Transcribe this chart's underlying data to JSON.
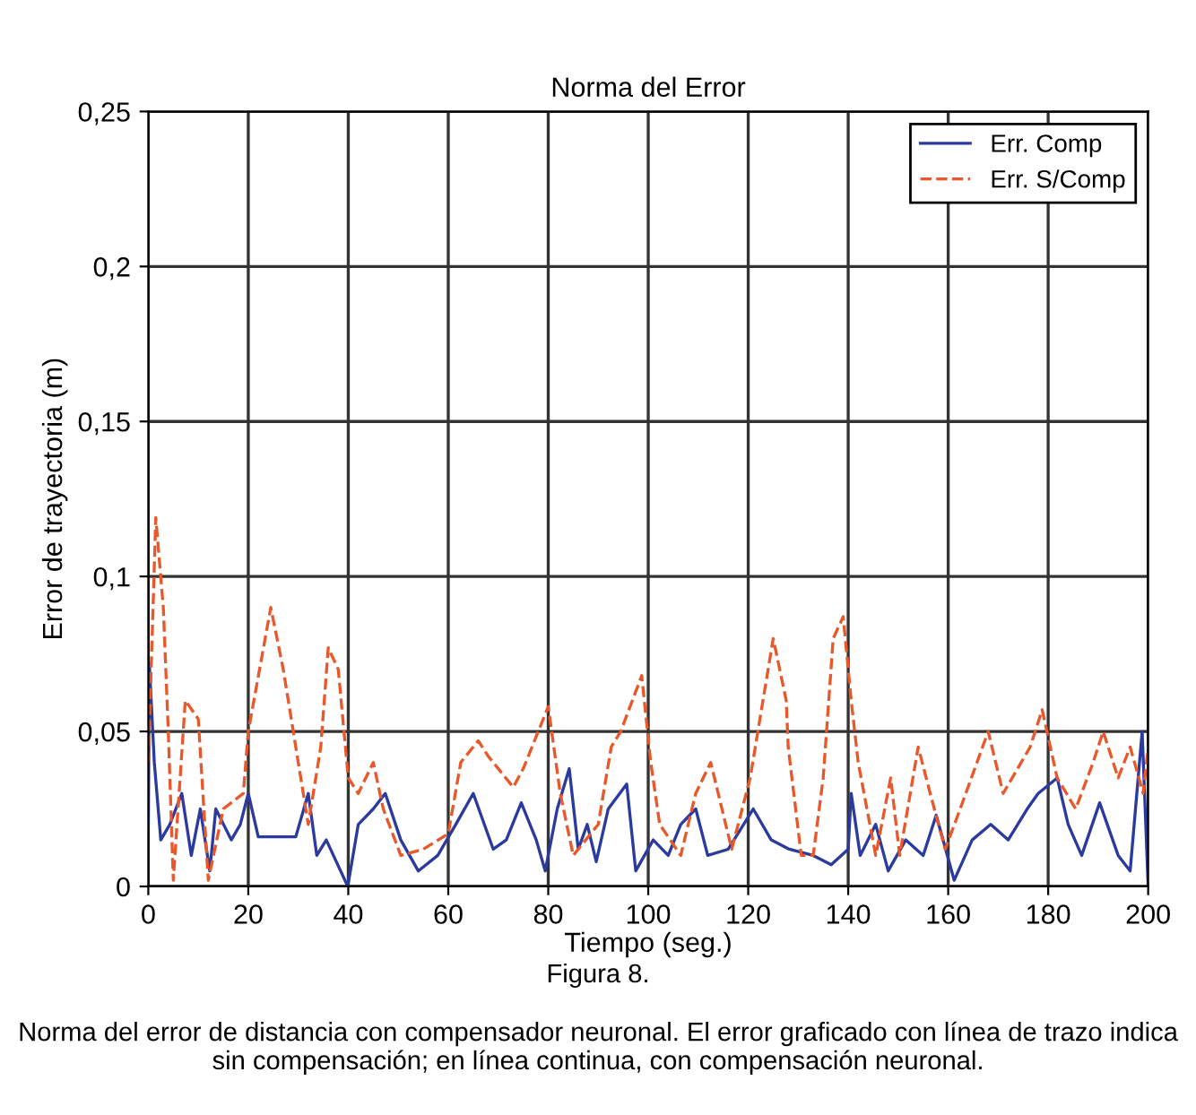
{
  "chart_data": {
    "type": "line",
    "title": "Norma del Error",
    "xlabel": "Tiempo (seg.)",
    "ylabel": "Error de trayectoria (m)",
    "annotations": [
      "Figura 8.",
      "Norma del error de distancia con compensador neuronal. El error graficado con línea de trazo indica sin compensación; en línea continua, con compensación neuronal."
    ],
    "xlim": [
      0,
      200
    ],
    "ylim": [
      0,
      0.25
    ],
    "xticks": [
      0,
      20,
      40,
      60,
      80,
      100,
      120,
      140,
      160,
      180,
      200
    ],
    "yticks": [
      0,
      {
        "value": 0.05,
        "label": "0,05"
      },
      {
        "value": 0.1,
        "label": "0,1"
      },
      {
        "value": 0.15,
        "label": "0,15"
      },
      {
        "value": 0.2,
        "label": "0,2"
      },
      {
        "value": 0.25,
        "label": "0,25"
      }
    ],
    "grid": true,
    "legend": "top right",
    "marker": "none",
    "series": [
      {
        "name": "Err. Comp",
        "color": "#2b3a9e",
        "line_style": "solid",
        "x": [
          0,
          0.2,
          1.2,
          2.5,
          4.3,
          6.7,
          8.6,
          10.4,
          12.3,
          13.5,
          16.6,
          18.4,
          20,
          22,
          29.5,
          32,
          33.7,
          35.6,
          39.9,
          42,
          45,
          47.4,
          50.5,
          54,
          57.9,
          61.5,
          65,
          69,
          71.6,
          74.6,
          77.6,
          79.4,
          81.8,
          84.2,
          86,
          87.8,
          89.6,
          92,
          95.7,
          97.5,
          101,
          104,
          106.5,
          109.5,
          111.9,
          116,
          121,
          124.6,
          128.2,
          133,
          136.6,
          140,
          140.6,
          142.4,
          145.5,
          148,
          151.5,
          155,
          157.6,
          161.2,
          164.8,
          168.5,
          172,
          175.8,
          178,
          181.8,
          184,
          186.7,
          190.3,
          194,
          196.4,
          198.8,
          200
        ],
        "values": [
          0.02,
          0.072,
          0.04,
          0.015,
          0.02,
          0.03,
          0.01,
          0.025,
          0.005,
          0.025,
          0.015,
          0.02,
          0.03,
          0.016,
          0.016,
          0.03,
          0.01,
          0.015,
          0.0,
          0.02,
          0.025,
          0.03,
          0.015,
          0.005,
          0.01,
          0.02,
          0.03,
          0.012,
          0.015,
          0.027,
          0.015,
          0.005,
          0.025,
          0.038,
          0.012,
          0.02,
          0.008,
          0.025,
          0.033,
          0.005,
          0.015,
          0.01,
          0.02,
          0.025,
          0.01,
          0.012,
          0.025,
          0.015,
          0.012,
          0.01,
          0.007,
          0.012,
          0.03,
          0.01,
          0.02,
          0.005,
          0.015,
          0.01,
          0.023,
          0.002,
          0.015,
          0.02,
          0.015,
          0.025,
          0.03,
          0.035,
          0.02,
          0.01,
          0.027,
          0.01,
          0.005,
          0.05,
          0.0
        ]
      },
      {
        "name": "Err. S/Comp",
        "color": "#e8582a",
        "line_style": "dashed",
        "x": [
          0,
          1.5,
          3,
          4,
          5,
          7.4,
          10,
          12,
          15,
          19,
          20,
          24.5,
          27,
          30,
          32,
          34.5,
          36,
          38,
          40,
          42,
          45,
          47,
          50.5,
          55,
          60,
          62.5,
          66,
          68,
          73,
          75,
          80,
          82.4,
          85,
          90,
          92.6,
          94.5,
          98.7,
          100.5,
          102.3,
          106.5,
          109.5,
          112.5,
          114,
          116.7,
          120.4,
          125,
          127.6,
          128,
          130.6,
          133,
          135,
          137,
          139,
          140.6,
          142,
          145.5,
          148.5,
          150.3,
          154,
          156.4,
          159.4,
          162.4,
          168,
          171,
          176.4,
          178.8,
          181.8,
          185.5,
          189,
          191,
          194,
          196.4,
          199,
          200
        ],
        "values": [
          0.04,
          0.119,
          0.09,
          0.05,
          0.002,
          0.06,
          0.054,
          0.002,
          0.025,
          0.03,
          0.05,
          0.09,
          0.07,
          0.04,
          0.02,
          0.045,
          0.077,
          0.07,
          0.035,
          0.03,
          0.04,
          0.025,
          0.01,
          0.012,
          0.017,
          0.04,
          0.047,
          0.042,
          0.032,
          0.038,
          0.058,
          0.03,
          0.01,
          0.02,
          0.045,
          0.05,
          0.068,
          0.04,
          0.02,
          0.01,
          0.03,
          0.04,
          0.03,
          0.012,
          0.035,
          0.08,
          0.06,
          0.045,
          0.01,
          0.01,
          0.035,
          0.08,
          0.087,
          0.06,
          0.04,
          0.01,
          0.035,
          0.01,
          0.045,
          0.03,
          0.012,
          0.025,
          0.05,
          0.03,
          0.045,
          0.057,
          0.035,
          0.025,
          0.04,
          0.05,
          0.035,
          0.045,
          0.03,
          0.045
        ]
      }
    ]
  }
}
